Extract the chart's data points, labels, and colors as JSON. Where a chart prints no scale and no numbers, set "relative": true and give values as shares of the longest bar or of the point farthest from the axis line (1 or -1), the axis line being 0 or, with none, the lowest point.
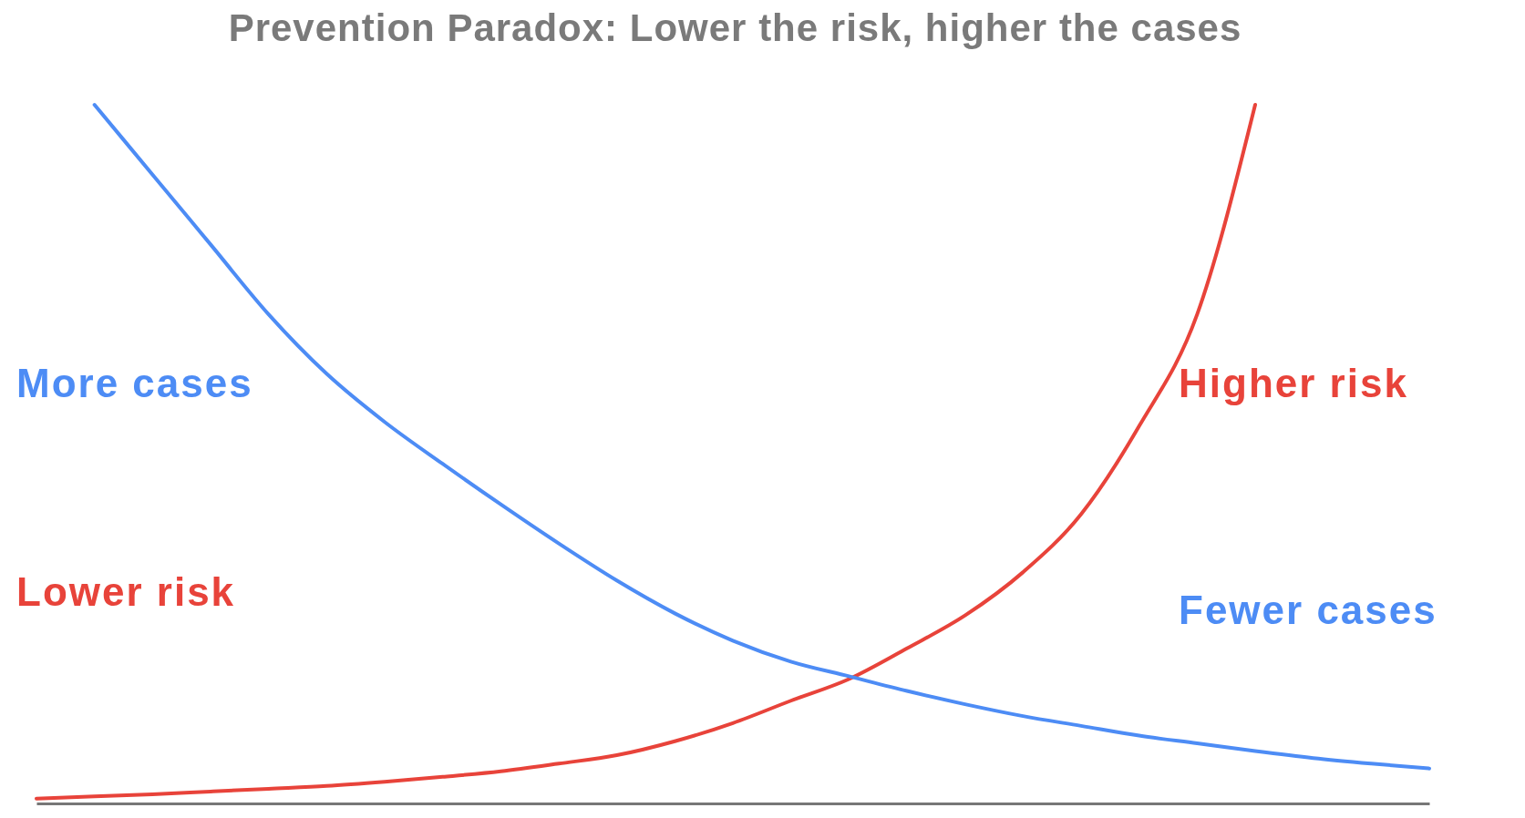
{
  "chart_data": {
    "type": "line",
    "title": "Prevention Paradox: Lower the risk, higher the cases",
    "relative": true,
    "marker": "none",
    "line_style": "solid",
    "categories": [
      null,
      null,
      null,
      null,
      null,
      null,
      null,
      null,
      null,
      null,
      null,
      null,
      null,
      null,
      null,
      null,
      null,
      null,
      null,
      null,
      null,
      null,
      null,
      null,
      null
    ],
    "series": [
      {
        "color": "#e8433a",
        "values": [
          0.007,
          0.01,
          0.013,
          0.017,
          0.021,
          0.025,
          0.031,
          0.038,
          0.046,
          0.057,
          0.069,
          0.089,
          0.115,
          0.147,
          0.178,
          0.222,
          0.269,
          0.331,
          0.414,
          0.54,
          0.7,
          1.0,
          null,
          null,
          null
        ]
      },
      {
        "color": "#4d8cf5",
        "values": [
          null,
          1.0,
          0.9,
          0.8,
          0.7,
          0.615,
          0.546,
          0.486,
          0.428,
          0.372,
          0.319,
          0.272,
          0.233,
          0.203,
          0.182,
          0.161,
          0.142,
          0.125,
          0.111,
          0.097,
          0.086,
          0.075,
          0.065,
          0.057,
          0.05
        ]
      }
    ],
    "annotations": [
      "More cases",
      "Lower risk",
      "Higher risk",
      "Fewer cases"
    ]
  }
}
